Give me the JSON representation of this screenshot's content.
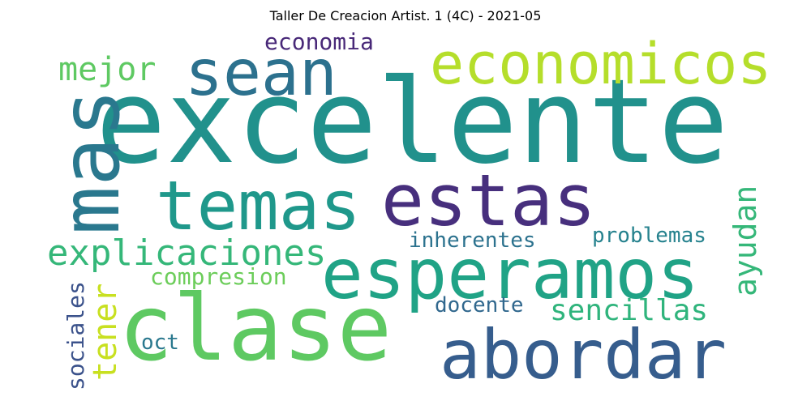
{
  "title": "Taller De Creacion Artist. 1 (4C) - 2021-05",
  "words": [
    {
      "text": "excelente",
      "color": "#21918c"
    },
    {
      "text": "sean",
      "color": "#2c718e"
    },
    {
      "text": "economicos",
      "color": "#b5de2b"
    },
    {
      "text": "mejor",
      "color": "#5ec962"
    },
    {
      "text": "economia",
      "color": "#482878"
    },
    {
      "text": "mas",
      "color": "#2a788e"
    },
    {
      "text": "temas",
      "color": "#1f988b"
    },
    {
      "text": "estas",
      "color": "#472f7d"
    },
    {
      "text": "explicaciones",
      "color": "#35b779"
    },
    {
      "text": "esperamos",
      "color": "#20a386"
    },
    {
      "text": "compresion",
      "color": "#6ccd5a"
    },
    {
      "text": "inherentes",
      "color": "#2c728e"
    },
    {
      "text": "problemas",
      "color": "#26828e"
    },
    {
      "text": "ayudan",
      "color": "#35b779"
    },
    {
      "text": "clase",
      "color": "#5ec962"
    },
    {
      "text": "docente",
      "color": "#31688e"
    },
    {
      "text": "sencillas",
      "color": "#2fb47c"
    },
    {
      "text": "tener",
      "color": "#c8e020"
    },
    {
      "text": "sociales",
      "color": "#3b528b"
    },
    {
      "text": "oct",
      "color": "#2a788e"
    },
    {
      "text": "abordar",
      "color": "#365d8d"
    }
  ]
}
